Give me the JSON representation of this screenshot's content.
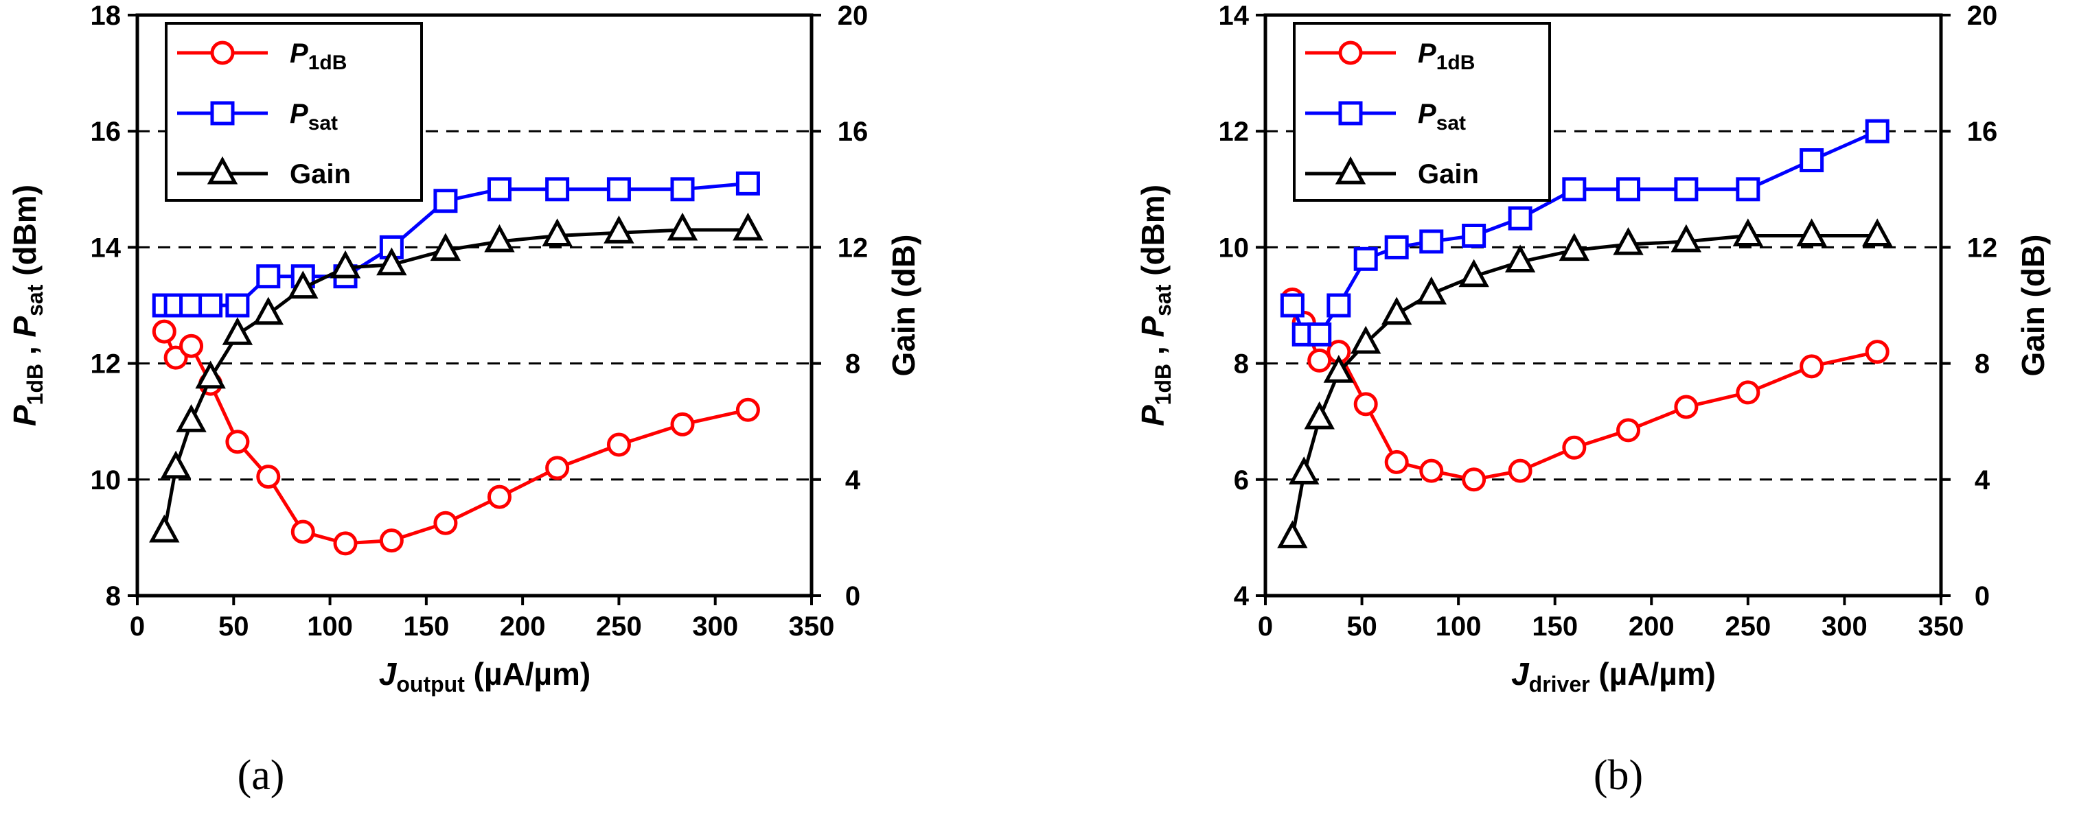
{
  "chart_data": [
    {
      "type": "line",
      "panel_label": "(a)",
      "x_label": {
        "italic": "J",
        "sub": "output",
        "units": " (µA/µm)"
      },
      "y_left_label": {
        "p1": "P",
        "s1": "1dB",
        "comma": " , ",
        "p2": "P",
        "s2": "sat",
        "units": " (dBm)"
      },
      "y_right_label": "Gain (dB)",
      "xlim": [
        0,
        350
      ],
      "xticks": [
        0,
        50,
        100,
        150,
        200,
        250,
        300,
        350
      ],
      "ylim_left": [
        8,
        18
      ],
      "yticks_left": [
        8,
        10,
        12,
        14,
        16,
        18
      ],
      "ylim_right": [
        0,
        20
      ],
      "yticks_right": [
        0,
        4,
        8,
        12,
        16,
        20
      ],
      "grid_left": [
        10,
        12,
        14,
        16
      ],
      "legend": {
        "position": "top-left"
      },
      "series": [
        {
          "name": "P",
          "sub": "1dB",
          "color": "#ff0000",
          "marker": "circle",
          "axis": "left",
          "x": [
            14,
            20,
            28,
            38,
            52,
            68,
            86,
            108,
            132,
            160,
            188,
            218,
            250,
            283,
            317
          ],
          "y": [
            12.55,
            12.1,
            12.3,
            11.65,
            10.65,
            10.05,
            9.1,
            8.9,
            8.95,
            9.25,
            9.7,
            10.2,
            10.6,
            10.95,
            11.2
          ]
        },
        {
          "name": "P",
          "sub": "sat",
          "color": "#0000ff",
          "marker": "square",
          "axis": "left",
          "x": [
            14,
            20,
            28,
            38,
            52,
            68,
            86,
            108,
            132,
            160,
            188,
            218,
            250,
            283,
            317
          ],
          "y": [
            13,
            13,
            13,
            13,
            13,
            13.5,
            13.5,
            13.5,
            14,
            14.8,
            15,
            15,
            15,
            15,
            15.1
          ]
        },
        {
          "name": "Gain",
          "sub": "",
          "color": "#000000",
          "marker": "triangle",
          "axis": "right",
          "x": [
            14,
            20,
            28,
            38,
            52,
            68,
            86,
            108,
            132,
            160,
            188,
            218,
            250,
            283,
            317
          ],
          "y": [
            2.2,
            4.4,
            6.0,
            7.5,
            9.0,
            9.7,
            10.6,
            11.3,
            11.4,
            11.9,
            12.2,
            12.4,
            12.5,
            12.6,
            12.6
          ]
        }
      ]
    },
    {
      "type": "line",
      "panel_label": "(b)",
      "x_label": {
        "italic": "J",
        "sub": "driver",
        "units": " (µA/µm)"
      },
      "y_left_label": {
        "p1": "P",
        "s1": "1dB",
        "comma": " , ",
        "p2": "P",
        "s2": "sat",
        "units": " (dBm)"
      },
      "y_right_label": "Gain (dB)",
      "xlim": [
        0,
        350
      ],
      "xticks": [
        0,
        50,
        100,
        150,
        200,
        250,
        300,
        350
      ],
      "ylim_left": [
        4,
        14
      ],
      "yticks_left": [
        4,
        6,
        8,
        10,
        12,
        14
      ],
      "ylim_right": [
        0,
        20
      ],
      "yticks_right": [
        0,
        4,
        8,
        12,
        16,
        20
      ],
      "grid_left": [
        6,
        8,
        10,
        12
      ],
      "legend": {
        "position": "top-left"
      },
      "series": [
        {
          "name": "P",
          "sub": "1dB",
          "color": "#ff0000",
          "marker": "circle",
          "axis": "left",
          "x": [
            14,
            20,
            28,
            38,
            52,
            68,
            86,
            108,
            132,
            160,
            188,
            218,
            250,
            283,
            317
          ],
          "y": [
            9.1,
            8.7,
            8.05,
            8.2,
            7.3,
            6.3,
            6.15,
            6.0,
            6.15,
            6.55,
            6.85,
            7.25,
            7.5,
            7.95,
            8.2
          ]
        },
        {
          "name": "P",
          "sub": "sat",
          "color": "#0000ff",
          "marker": "square",
          "axis": "left",
          "x": [
            14,
            20,
            28,
            38,
            52,
            68,
            86,
            108,
            132,
            160,
            188,
            218,
            250,
            283,
            317
          ],
          "y": [
            9,
            8.5,
            8.5,
            9,
            9.8,
            10,
            10.1,
            10.2,
            10.5,
            11,
            11,
            11,
            11,
            11.5,
            12
          ]
        },
        {
          "name": "Gain",
          "sub": "",
          "color": "#000000",
          "marker": "triangle",
          "axis": "right",
          "x": [
            14,
            20,
            28,
            38,
            52,
            68,
            86,
            108,
            132,
            160,
            188,
            218,
            250,
            283,
            317
          ],
          "y": [
            2.0,
            4.2,
            6.1,
            7.7,
            8.7,
            9.7,
            10.4,
            11.0,
            11.5,
            11.9,
            12.1,
            12.2,
            12.4,
            12.4,
            12.4
          ]
        }
      ]
    }
  ]
}
